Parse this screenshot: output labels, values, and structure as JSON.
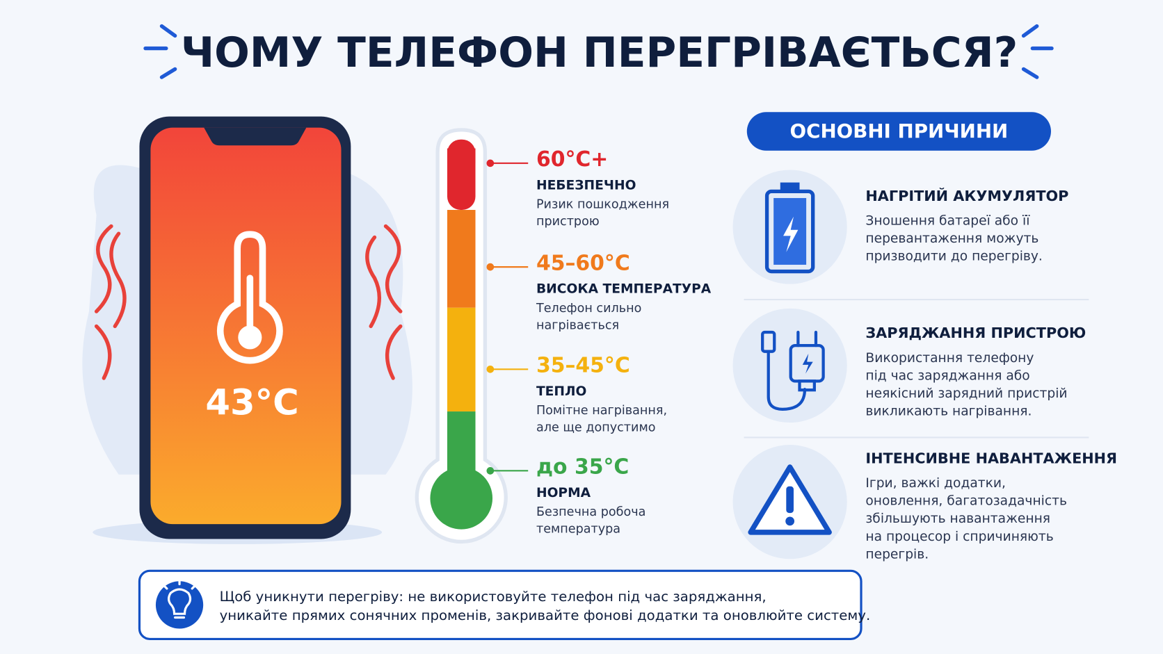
{
  "title": "ЧОМУ ТЕЛЕФОН ПЕРЕГРІВАЄТЬСЯ?",
  "phone": {
    "temperature": "43°C"
  },
  "scale": {
    "levels": [
      {
        "range": "60°C+",
        "label": "НЕБЕЗПЕЧНО",
        "description": [
          "Ризик пошкодження",
          "пристрою"
        ]
      },
      {
        "range": "45–60°C",
        "label": "ВИСОКА ТЕМПЕРАТУРА",
        "description": [
          "Телефон сильно",
          "нагрівається"
        ]
      },
      {
        "range": "35–45°C",
        "label": "ТЕПЛО",
        "description": [
          "Помітне нагрівання,",
          "але ще допустимо"
        ]
      },
      {
        "range": "до 35°C",
        "label": "НОРМА",
        "description": [
          "Безпечна робоча",
          "температура"
        ]
      }
    ]
  },
  "causes": {
    "title": "ОСНОВНІ ПРИЧИНИ",
    "items": [
      {
        "title": "НАГРІТИЙ АКУМУЛЯТОР",
        "description": [
          "Зношення батареї або її",
          "перевантаження можуть",
          "призводити до перегріву."
        ]
      },
      {
        "title": "ЗАРЯДЖАННЯ ПРИСТРОЮ",
        "description": [
          "Використання телефону",
          "під час заряджання або",
          "неякісний зарядний пристрій",
          "викликають нагрівання."
        ]
      },
      {
        "title": "ІНТЕНСИВНЕ НАВАНТАЖЕННЯ",
        "description": [
          "Ігри, важкі додатки,",
          "оновлення, багатозадачність",
          "збільшують навантаження",
          "на процесор і спричиняють",
          "перегрів."
        ]
      }
    ]
  },
  "tip": {
    "text": [
      "Щоб уникнути перегріву: не використовуйте телефон під час заряджання,",
      "уникайте прямих сонячних променів, закривайте фонові додатки та оновлюйте систему."
    ]
  }
}
